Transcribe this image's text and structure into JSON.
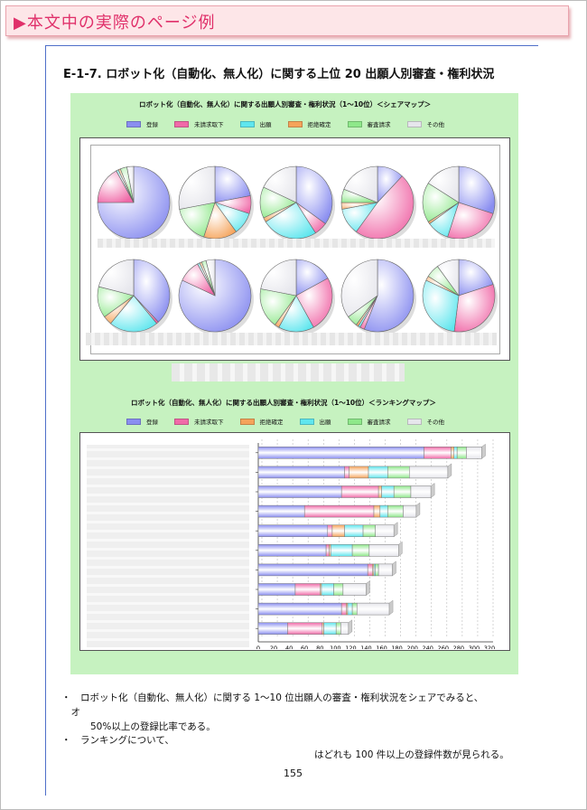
{
  "banner": {
    "title": "▶本文中の実際のページ例"
  },
  "heading": "E-1-7.  ロボット化（自動化、無人化）に関する上位 20 出願人別審査・権利状況",
  "colors": {
    "登録": "#8a8ef0",
    "未請求取下": "#f06aa8",
    "出願": "#5fe6ee",
    "拒絶確定": "#f5a35a",
    "審査請求": "#8ee88a",
    "その他": "#e6e6ec"
  },
  "chart_data": [
    {
      "type": "pie",
      "title": "ロボット化（自動化、無人化）に関する出願人別審査・権利状況（1～10位）＜シェアマップ＞",
      "legend": [
        "登録",
        "未請求取下",
        "出願",
        "拒絶確定",
        "審査請求",
        "その他"
      ],
      "pies": [
        {
          "values": [
            0.75,
            0.17,
            0.01,
            0.01,
            0.03,
            0.03
          ]
        },
        {
          "values": [
            0.22,
            0.08,
            0.1,
            0.15,
            0.17,
            0.28
          ]
        },
        {
          "values": [
            0.35,
            0.06,
            0.25,
            0.02,
            0.14,
            0.18
          ]
        },
        {
          "values": [
            0.12,
            0.48,
            0.12,
            0.03,
            0.06,
            0.19
          ]
        },
        {
          "values": [
            0.3,
            0.25,
            0.1,
            0.01,
            0.18,
            0.16
          ]
        },
        {
          "values": [
            0.38,
            0.01,
            0.22,
            0.04,
            0.14,
            0.21
          ]
        },
        {
          "values": [
            0.82,
            0.1,
            0.01,
            0.01,
            0.02,
            0.04
          ]
        },
        {
          "values": [
            0.17,
            0.25,
            0.16,
            0.02,
            0.18,
            0.22
          ]
        },
        {
          "values": [
            0.56,
            0.02,
            0.01,
            0.01,
            0.05,
            0.35
          ]
        },
        {
          "values": [
            0.2,
            0.32,
            0.3,
            0.02,
            0.06,
            0.1
          ]
        }
      ]
    },
    {
      "type": "bar",
      "orientation": "horizontal",
      "stacked": true,
      "title": "ロボット化（自動化、無人化）に関する出願人別審査・権利状況（1～10位）＜ランキングマップ＞",
      "legend": [
        "登録",
        "未請求取下",
        "拒絶確定",
        "出願",
        "審査請求",
        "その他"
      ],
      "xlim": [
        0,
        320
      ],
      "xticks": [
        0,
        20,
        40,
        60,
        80,
        100,
        120,
        140,
        160,
        180,
        200,
        240,
        260,
        280,
        300,
        320
      ],
      "xunit": "件",
      "series": [
        {
          "name": "登録",
          "values": [
            230,
            112,
            108,
            60,
            90,
            88,
            142,
            48,
            108,
            38
          ]
        },
        {
          "name": "未請求取下",
          "values": [
            40,
            6,
            48,
            90,
            6,
            4,
            6,
            32,
            6,
            45
          ]
        },
        {
          "name": "拒絶確定",
          "values": [
            4,
            25,
            4,
            8,
            16,
            2,
            2,
            2,
            2,
            2
          ]
        },
        {
          "name": "出願",
          "values": [
            4,
            25,
            16,
            10,
            24,
            28,
            2,
            16,
            6,
            16
          ]
        },
        {
          "name": "審査請求",
          "values": [
            12,
            28,
            22,
            20,
            16,
            22,
            4,
            12,
            6,
            6
          ]
        },
        {
          "name": "その他",
          "values": [
            20,
            70,
            46,
            22,
            24,
            38,
            18,
            30,
            42,
            10
          ]
        }
      ]
    }
  ],
  "bullets": [
    "・　ロボット化（自動化、無人化）に関する 1～10 位出願人の審査・権利状況をシェアでみると、",
    "　オ",
    "50%以上の登録比率である。",
    "・　ランキングについて、",
    "はどれも 100 件以上の登録件数が見られる。"
  ],
  "page_number": "155"
}
